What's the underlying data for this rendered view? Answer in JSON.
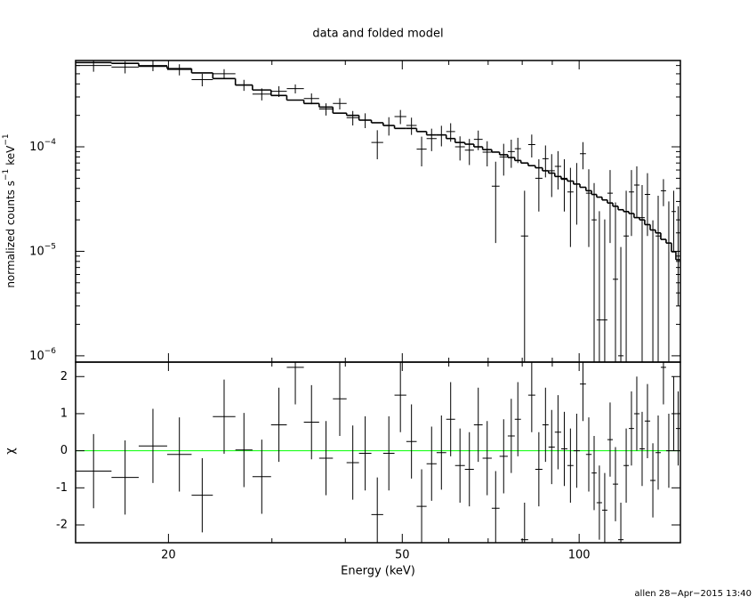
{
  "chart_data": [
    {
      "type": "spectrum",
      "title": "data and folded model",
      "ylabel": {
        "main": "normalized counts s",
        "exp1": "−1",
        "unit": "keV",
        "exp2": "−1"
      },
      "xscale": "log",
      "yscale": "log",
      "color": "#000000",
      "xlim": [
        13.9,
        148.7
      ],
      "ylim": [
        8.7e-07,
        0.00067
      ],
      "xticks": [
        20,
        50,
        100
      ],
      "xminor": [
        30,
        40,
        60,
        70,
        80,
        90
      ],
      "yticks": [
        {
          "value": 1e-06,
          "label": "10",
          "exponent": "−6"
        },
        {
          "value": 1e-05,
          "label": "10",
          "exponent": "−5"
        },
        {
          "value": 0.0001,
          "label": "10",
          "exponent": "−4"
        }
      ],
      "yminor": [
        2e-06,
        3e-06,
        4e-06,
        5e-06,
        6e-06,
        7e-06,
        8e-06,
        9e-06,
        2e-05,
        3e-05,
        4e-05,
        5e-05,
        6e-05,
        7e-05,
        8e-05,
        9e-05,
        0.0002,
        0.0003,
        0.0004,
        0.0005,
        0.0006
      ],
      "bins": [
        13.9,
        16.0,
        17.8,
        19.9,
        21.9,
        23.8,
        26.0,
        27.8,
        29.9,
        31.8,
        34.0,
        36.1,
        38.1,
        40.2,
        42.2,
        44.3,
        46.4,
        48.5,
        50.8,
        52.9,
        55.0,
        57.2,
        59.4,
        61.5,
        63.9,
        66.2,
        68.5,
        71.0,
        73.2,
        75.6,
        77.7,
        79.6,
        81.9,
        84.2,
        86.6,
        88.7,
        90.9,
        93.2,
        95.5,
        97.8,
        100.3,
        102.7,
        105.0,
        107.1,
        109.4,
        111.7,
        114.1,
        116.5,
        119.0,
        121.5,
        124.0,
        126.7,
        129.3,
        132.1,
        134.9,
        137.7,
        140.6,
        143.6,
        146.1,
        148.7
      ],
      "data": {
        "values": [
          0.0006,
          0.00058,
          0.0006,
          0.00055,
          0.00044,
          0.0005,
          0.00039,
          0.00032,
          0.00034,
          0.00036,
          0.00029,
          0.00023,
          0.00026,
          0.00019,
          0.00018,
          0.00011,
          0.00016,
          0.000195,
          0.00016,
          9.5e-05,
          0.00012,
          0.00013,
          0.00014,
          0.0001,
          9.3e-05,
          0.000118,
          8.9e-05,
          4.2e-05,
          8e-05,
          9e-05,
          9.6e-05,
          1.4e-05,
          0.000105,
          5e-05,
          7.7e-05,
          5.9e-05,
          6.5e-05,
          5e-05,
          3.7e-05,
          4.4e-05,
          8.6e-05,
          3.6e-05,
          2e-05,
          2.2e-06,
          2.2e-06,
          3.6e-05,
          5.4e-06,
          1e-06,
          1.4e-05,
          3.7e-05,
          4.3e-05,
          2.1e-05,
          3.5e-05,
          8e-07,
          1.4e-05,
          3.8e-05,
          1.2e-05,
          2.4e-05,
          1.5e-05
        ],
        "errors": [
          7.7e-05,
          7.6e-05,
          7.1e-05,
          6.7e-05,
          6.1e-05,
          5.4e-05,
          4.7e-05,
          4.2e-05,
          4e-05,
          3.6e-05,
          3.4e-05,
          3.1e-05,
          3.2e-05,
          3e-05,
          2.9e-05,
          3.4e-05,
          3.2e-05,
          3e-05,
          3e-05,
          3e-05,
          2.9e-05,
          2.9e-05,
          2.8e-05,
          2.6e-05,
          2.6e-05,
          2.5e-05,
          2.4e-05,
          3e-05,
          2.7e-05,
          2.7e-05,
          2.6e-05,
          2.4e-05,
          2.6e-05,
          2.6e-05,
          2.6e-05,
          2.6e-05,
          2.6e-05,
          2.6e-05,
          2.6e-05,
          2.6e-05,
          2.5e-05,
          2.5e-05,
          2.5e-05,
          2.2e-05,
          1.8e-05,
          2.4e-05,
          2.4e-05,
          1e-05,
          2.4e-05,
          2.3e-05,
          2.2e-05,
          2.2e-05,
          2.1e-05,
          1.9e-05,
          2e-05,
          1.1e-05,
          1.8e-05,
          1.4e-05,
          1.2e-05
        ]
      },
      "model": {
        "values": [
          0.00064,
          0.00063,
          0.00059,
          0.00056,
          0.00051,
          0.00045,
          0.00039,
          0.00035,
          0.00031,
          0.00028,
          0.00026,
          0.00024,
          0.00021,
          0.0002,
          0.00018,
          0.00017,
          0.00016,
          0.00015,
          0.00015,
          0.00014,
          0.00013,
          0.00013,
          0.00012,
          0.00011,
          0.000106,
          0.0001,
          9.4e-05,
          8.9e-05,
          8.4e-05,
          7.9e-05,
          7.4e-05,
          7e-05,
          6.6e-05,
          6.3e-05,
          5.9e-05,
          5.6e-05,
          5.2e-05,
          4.9e-05,
          4.7e-05,
          4.4e-05,
          4.1e-05,
          3.8e-05,
          3.5e-05,
          3.3e-05,
          3.1e-05,
          2.9e-05,
          2.7e-05,
          2.5e-05,
          2.4e-05,
          2.3e-05,
          2.1e-05,
          2e-05,
          1.8e-05,
          1.6e-05,
          1.5e-05,
          1.3e-05,
          1.2e-05,
          9.9e-06,
          8.3e-06
        ]
      }
    },
    {
      "type": "residual",
      "xlabel": "Energy (keV)",
      "ylabel": "χ",
      "color": "#000000",
      "ylim": [
        -2.48,
        2.39
      ],
      "yticks": [
        -2,
        -1,
        0,
        1,
        2
      ],
      "hline": {
        "value": 0,
        "color": "#00ff00"
      },
      "values": [
        -0.55,
        -0.72,
        0.13,
        -0.1,
        -1.2,
        0.92,
        0.02,
        -0.7,
        0.7,
        2.25,
        0.77,
        -0.2,
        1.4,
        -0.32,
        -0.07,
        -1.72,
        -0.07,
        1.5,
        0.25,
        -1.5,
        -0.35,
        -0.05,
        0.85,
        -0.4,
        -0.5,
        0.7,
        -0.2,
        -1.55,
        -0.15,
        0.4,
        0.85,
        -2.4,
        1.5,
        -0.5,
        0.7,
        0.1,
        0.5,
        0.05,
        -0.4,
        0,
        1.8,
        -0.1,
        -0.6,
        -1.4,
        -1.6,
        0.3,
        -0.9,
        -2.4,
        -0.4,
        0.6,
        1.0,
        0.05,
        0.8,
        -0.8,
        -0.05,
        2.25,
        0,
        1.0,
        0.6
      ],
      "errors": [
        1,
        1,
        1,
        1,
        1,
        1,
        1,
        1,
        1,
        1,
        1,
        1,
        1,
        1,
        1,
        1,
        1,
        1,
        1,
        1,
        1,
        1,
        1,
        1,
        1,
        1,
        1,
        1,
        1,
        1,
        1,
        1,
        1,
        1,
        1,
        1,
        1,
        1,
        1,
        1,
        1,
        1,
        1,
        1,
        1,
        1,
        1,
        1,
        1,
        1,
        1,
        1,
        1,
        1,
        1,
        1,
        1,
        1,
        1
      ]
    }
  ],
  "footer": "allen 28−Apr−2015 13:40"
}
